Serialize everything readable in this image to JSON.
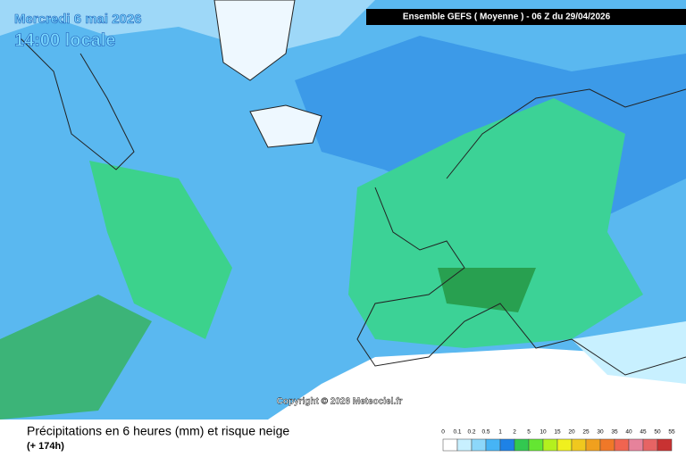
{
  "header": {
    "date": "Mercredi 6 mai 2026",
    "time": "14:00 locale",
    "model": "Ensemble GEFS  ( Moyenne )  -  06 Z du 29/04/2026"
  },
  "copyright": "Copyright © 2026 Meteociel.fr",
  "footer": {
    "title": "Précipitations en 6 heures (mm) et risque neige",
    "lead": "(+ 174h)"
  },
  "legend": {
    "values": [
      0,
      0.1,
      0.2,
      0.5,
      1,
      2,
      5,
      10,
      15,
      20,
      25,
      30,
      35,
      40,
      45,
      50,
      55
    ],
    "colors": [
      "#ffffff",
      "#c8f0ff",
      "#8cd7fa",
      "#46b4f5",
      "#1e82e6",
      "#32c850",
      "#64e632",
      "#b4f01e",
      "#f0f01e",
      "#f0c81e",
      "#f0a01e",
      "#f07828",
      "#f06450",
      "#e6829b",
      "#e66464",
      "#c83232"
    ]
  }
}
